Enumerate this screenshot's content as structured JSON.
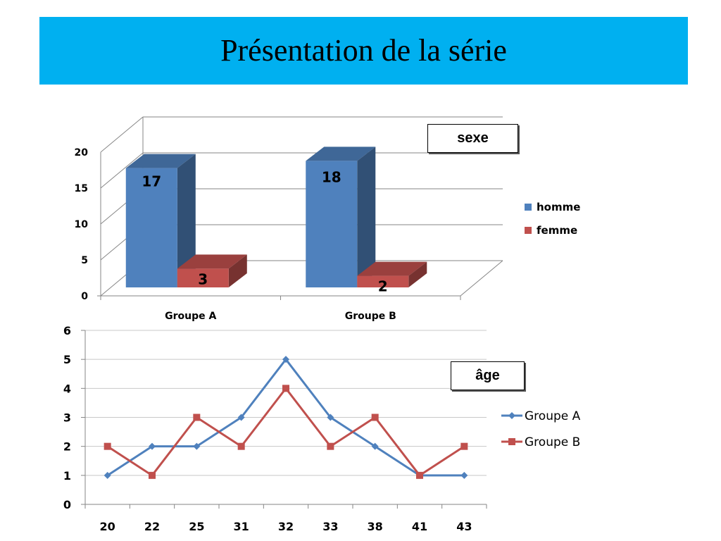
{
  "slide": {
    "title": "Présentation de la série"
  },
  "chart_data": [
    {
      "type": "bar",
      "title": "sexe",
      "categories": [
        "Groupe A",
        "Groupe B"
      ],
      "series": [
        {
          "name": "homme",
          "values": [
            17,
            18
          ]
        },
        {
          "name": "femme",
          "values": [
            3,
            2
          ]
        }
      ],
      "yticks": [
        0,
        5,
        10,
        15,
        20
      ],
      "ylim": [
        0,
        20
      ],
      "grid": true,
      "legend": "right",
      "colors": {
        "homme": "#4f81bd",
        "femme": "#c0504d"
      }
    },
    {
      "type": "line",
      "title": "âge",
      "x": [
        "20",
        "22",
        "25",
        "31",
        "32",
        "33",
        "38",
        "41",
        "43"
      ],
      "series": [
        {
          "name": "Groupe A",
          "values": [
            1,
            2,
            2,
            3,
            5,
            3,
            2,
            1,
            1
          ]
        },
        {
          "name": "Groupe B",
          "values": [
            2,
            1,
            3,
            2,
            4,
            2,
            3,
            1,
            2
          ]
        }
      ],
      "yticks": [
        0,
        1,
        2,
        3,
        4,
        5,
        6
      ],
      "ylim": [
        0,
        6
      ],
      "grid": true,
      "legend": "right",
      "colors": {
        "Groupe A": "#4f81bd",
        "Groupe B": "#c0504d"
      }
    }
  ]
}
